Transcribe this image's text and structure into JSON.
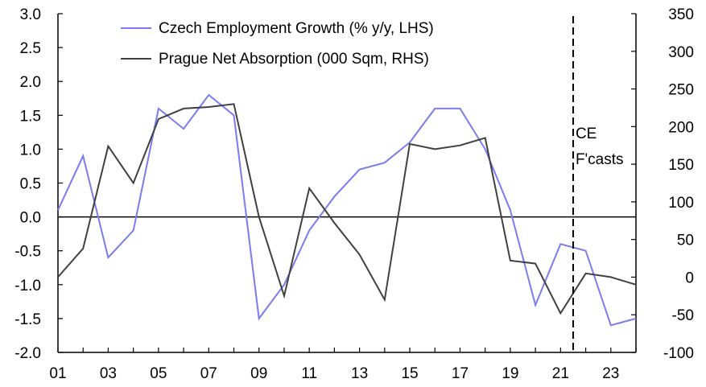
{
  "chart_data": {
    "type": "line",
    "x": [
      "01",
      "02",
      "03",
      "04",
      "05",
      "06",
      "07",
      "08",
      "09",
      "10",
      "11",
      "12",
      "13",
      "14",
      "15",
      "16",
      "17",
      "18",
      "19",
      "20",
      "21",
      "22",
      "23",
      "24"
    ],
    "x_tick_labels": [
      "01",
      "03",
      "05",
      "07",
      "09",
      "11",
      "13",
      "15",
      "17",
      "19",
      "21",
      "23"
    ],
    "series": [
      {
        "name": "Czech Employment Growth (% y/y, LHS)",
        "axis": "left",
        "color": "#7b7bf0",
        "values": [
          0.1,
          0.9,
          -0.6,
          -0.2,
          1.6,
          1.3,
          1.8,
          1.5,
          -1.5,
          -1.0,
          -0.2,
          0.3,
          0.7,
          0.8,
          1.1,
          1.6,
          1.6,
          1.0,
          0.1,
          -1.3,
          -0.4,
          -0.5,
          -1.6,
          -1.5
        ]
      },
      {
        "name": "Prague Net Absorption (000 Sqm, RHS)",
        "axis": "right",
        "color": "#404040",
        "values": [
          0,
          38,
          174,
          125,
          210,
          224,
          226,
          230,
          80,
          -25,
          118,
          72,
          30,
          -30,
          177,
          170,
          175,
          185,
          22,
          18,
          -48,
          5,
          0,
          -10
        ]
      }
    ],
    "y_left": {
      "ylim": [
        -2.0,
        3.0
      ],
      "ticks": [
        "3.0",
        "2.5",
        "2.0",
        "1.5",
        "1.0",
        "0.5",
        "0.0",
        "-0.5",
        "-1.0",
        "-1.5",
        "-2.0"
      ]
    },
    "y_right": {
      "ylim": [
        -100,
        350
      ],
      "ticks": [
        "350",
        "300",
        "250",
        "200",
        "150",
        "100",
        "50",
        "0",
        "-50",
        "-100"
      ]
    },
    "forecast_marker": {
      "x": 21.5,
      "label_line1": "CE",
      "label_line2": "F'casts"
    },
    "legend_position": "top-center",
    "grid": false
  }
}
